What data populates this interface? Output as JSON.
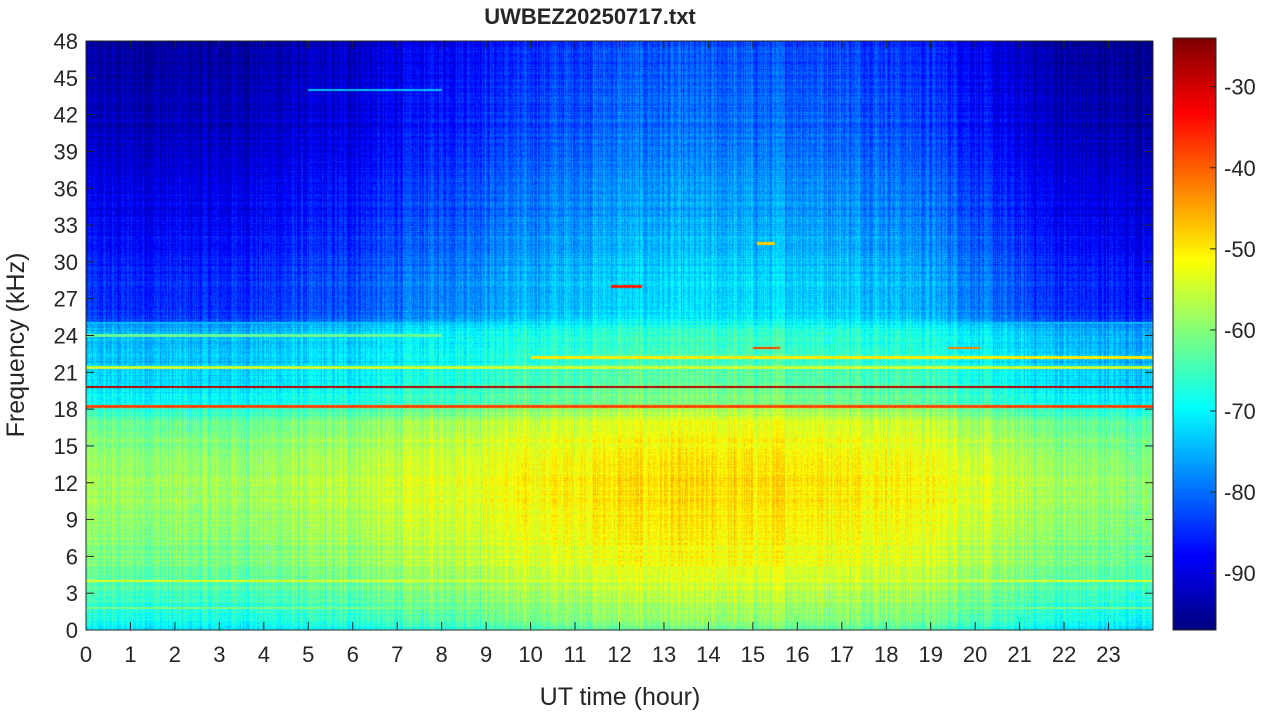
{
  "chart_data": {
    "type": "heatmap",
    "title": "UWBEZ20250717.txt",
    "xlabel": "UT time (hour)",
    "ylabel": "Frequency (kHz)",
    "xlim": [
      0,
      24
    ],
    "ylim": [
      0,
      48
    ],
    "x_ticks": [
      "0",
      "1",
      "2",
      "3",
      "4",
      "5",
      "6",
      "7",
      "8",
      "9",
      "10",
      "11",
      "12",
      "13",
      "14",
      "15",
      "16",
      "17",
      "18",
      "19",
      "20",
      "21",
      "22",
      "23"
    ],
    "y_ticks": [
      "0",
      "3",
      "6",
      "9",
      "12",
      "15",
      "18",
      "21",
      "24",
      "27",
      "30",
      "33",
      "36",
      "39",
      "42",
      "45",
      "48"
    ],
    "colormap": "jet",
    "color_range": [
      -97,
      -24
    ],
    "colorbar_ticks": [
      "-30",
      "-40",
      "-50",
      "-60",
      "-70",
      "-80",
      "-90"
    ],
    "colorbar_tick_values": [
      -30,
      -40,
      -50,
      -60,
      -70,
      -80,
      -90
    ],
    "frequency_profile": [
      {
        "f": 0,
        "level": -68
      },
      {
        "f": 1,
        "level": -65
      },
      {
        "f": 3,
        "level": -62
      },
      {
        "f": 6,
        "level": -58
      },
      {
        "f": 9,
        "level": -56
      },
      {
        "f": 12,
        "level": -55
      },
      {
        "f": 15,
        "level": -57
      },
      {
        "f": 17,
        "level": -60
      },
      {
        "f": 18.5,
        "level": -66
      },
      {
        "f": 20,
        "level": -69
      },
      {
        "f": 22,
        "level": -71
      },
      {
        "f": 24.5,
        "level": -72
      },
      {
        "f": 25.5,
        "level": -80
      },
      {
        "f": 30,
        "level": -82
      },
      {
        "f": 35,
        "level": -85
      },
      {
        "f": 40,
        "level": -88
      },
      {
        "f": 48,
        "level": -91
      }
    ],
    "time_profile": [
      {
        "t": 0,
        "offset": -3
      },
      {
        "t": 3,
        "offset": -3
      },
      {
        "t": 6,
        "offset": -1
      },
      {
        "t": 8,
        "offset": 2
      },
      {
        "t": 10,
        "offset": 4
      },
      {
        "t": 12,
        "offset": 6
      },
      {
        "t": 14,
        "offset": 6
      },
      {
        "t": 16,
        "offset": 6
      },
      {
        "t": 18,
        "offset": 5
      },
      {
        "t": 19.5,
        "offset": 3
      },
      {
        "t": 20.5,
        "offset": 0
      },
      {
        "t": 22,
        "offset": -3
      },
      {
        "t": 24,
        "offset": -4
      }
    ],
    "narrowband_lines": [
      {
        "f": 19.8,
        "t0": 0,
        "t1": 24,
        "level": -28
      },
      {
        "f": 18.2,
        "t0": 0,
        "t1": 24,
        "level": -38
      },
      {
        "f": 21.4,
        "t0": 0,
        "t1": 24,
        "level": -55
      },
      {
        "f": 22.2,
        "t0": 10,
        "t1": 24,
        "level": -50
      },
      {
        "f": 23.0,
        "t0": 15.0,
        "t1": 15.6,
        "level": -38
      },
      {
        "f": 23.0,
        "t0": 19.4,
        "t1": 20.1,
        "level": -42
      },
      {
        "f": 28.0,
        "t0": 11.8,
        "t1": 12.5,
        "level": -35
      },
      {
        "f": 31.5,
        "t0": 15.1,
        "t1": 15.5,
        "level": -48
      },
      {
        "f": 24.0,
        "t0": 0,
        "t1": 8,
        "level": -62
      },
      {
        "f": 4.0,
        "t0": 0,
        "t1": 24,
        "level": -54
      },
      {
        "f": 1.8,
        "t0": 0,
        "t1": 24,
        "level": -60
      },
      {
        "f": 44.0,
        "t0": 5,
        "t1": 8,
        "level": -74
      },
      {
        "f": 25.0,
        "t0": 0,
        "t1": 24,
        "level": -74
      }
    ]
  }
}
